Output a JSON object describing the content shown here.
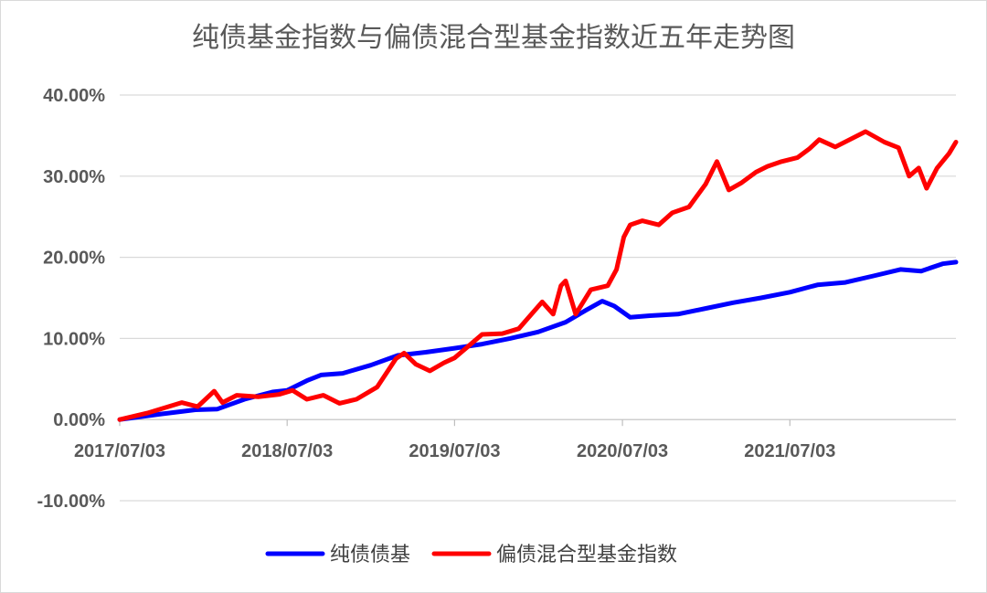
{
  "chart_data": {
    "type": "line",
    "title": "纯债基金指数与偏债混合型基金指数近五年走势图",
    "ylim": [
      -0.1,
      0.4
    ],
    "y_ticks": [
      -0.1,
      0.0,
      0.1,
      0.2,
      0.3,
      0.4
    ],
    "y_tick_labels": [
      "-10.00%",
      "0.00%",
      "10.00%",
      "20.00%",
      "30.00%",
      "40.00%"
    ],
    "x_range": [
      "2017-07-03",
      "2022-06-30"
    ],
    "x_ticks": [
      "2017-07-03",
      "2018-07-03",
      "2019-07-03",
      "2020-07-03",
      "2021-07-03"
    ],
    "x_tick_labels": [
      "2017/07/03",
      "2018/07/03",
      "2019/07/03",
      "2020/07/03",
      "2021/07/03"
    ],
    "grid": true,
    "legend_position": "bottom",
    "series": [
      {
        "name": "纯债债基",
        "color": "#0000ff",
        "points": [
          [
            "2017-07-03",
            0.0
          ],
          [
            "2017-10-03",
            0.007
          ],
          [
            "2017-12-15",
            0.012
          ],
          [
            "2018-02-01",
            0.013
          ],
          [
            "2018-04-01",
            0.025
          ],
          [
            "2018-06-01",
            0.034
          ],
          [
            "2018-07-03",
            0.036
          ],
          [
            "2018-08-15",
            0.048
          ],
          [
            "2018-09-15",
            0.055
          ],
          [
            "2018-11-01",
            0.057
          ],
          [
            "2019-01-01",
            0.067
          ],
          [
            "2019-03-01",
            0.079
          ],
          [
            "2019-05-01",
            0.083
          ],
          [
            "2019-07-03",
            0.088
          ],
          [
            "2019-09-01",
            0.093
          ],
          [
            "2019-11-01",
            0.1
          ],
          [
            "2020-01-01",
            0.108
          ],
          [
            "2020-03-01",
            0.12
          ],
          [
            "2020-04-15",
            0.135
          ],
          [
            "2020-05-20",
            0.146
          ],
          [
            "2020-06-15",
            0.14
          ],
          [
            "2020-07-20",
            0.126
          ],
          [
            "2020-09-01",
            0.128
          ],
          [
            "2020-11-01",
            0.13
          ],
          [
            "2021-01-01",
            0.137
          ],
          [
            "2021-03-01",
            0.144
          ],
          [
            "2021-05-01",
            0.15
          ],
          [
            "2021-07-03",
            0.157
          ],
          [
            "2021-09-01",
            0.166
          ],
          [
            "2021-11-01",
            0.169
          ],
          [
            "2022-01-01",
            0.177
          ],
          [
            "2022-03-01",
            0.185
          ],
          [
            "2022-04-15",
            0.183
          ],
          [
            "2022-06-01",
            0.192
          ],
          [
            "2022-06-30",
            0.194
          ]
        ]
      },
      {
        "name": "偏债混合型基金指数",
        "color": "#ff0000",
        "points": [
          [
            "2017-07-03",
            0.0
          ],
          [
            "2017-09-01",
            0.008
          ],
          [
            "2017-11-15",
            0.021
          ],
          [
            "2017-12-20",
            0.016
          ],
          [
            "2018-01-25",
            0.035
          ],
          [
            "2018-02-12",
            0.021
          ],
          [
            "2018-03-15",
            0.03
          ],
          [
            "2018-05-01",
            0.028
          ],
          [
            "2018-06-15",
            0.031
          ],
          [
            "2018-07-15",
            0.036
          ],
          [
            "2018-08-15",
            0.025
          ],
          [
            "2018-09-20",
            0.03
          ],
          [
            "2018-10-25",
            0.02
          ],
          [
            "2018-12-01",
            0.025
          ],
          [
            "2019-01-15",
            0.04
          ],
          [
            "2019-02-25",
            0.075
          ],
          [
            "2019-03-15",
            0.082
          ],
          [
            "2019-04-10",
            0.068
          ],
          [
            "2019-05-10",
            0.06
          ],
          [
            "2019-06-10",
            0.07
          ],
          [
            "2019-07-03",
            0.076
          ],
          [
            "2019-08-01",
            0.09
          ],
          [
            "2019-09-01",
            0.105
          ],
          [
            "2019-10-15",
            0.106
          ],
          [
            "2019-11-20",
            0.112
          ],
          [
            "2020-01-10",
            0.145
          ],
          [
            "2020-02-03",
            0.13
          ],
          [
            "2020-02-20",
            0.165
          ],
          [
            "2020-03-01",
            0.171
          ],
          [
            "2020-03-23",
            0.13
          ],
          [
            "2020-04-25",
            0.16
          ],
          [
            "2020-06-01",
            0.165
          ],
          [
            "2020-06-20",
            0.185
          ],
          [
            "2020-07-06",
            0.225
          ],
          [
            "2020-07-20",
            0.24
          ],
          [
            "2020-08-15",
            0.245
          ],
          [
            "2020-09-20",
            0.24
          ],
          [
            "2020-10-20",
            0.255
          ],
          [
            "2020-11-25",
            0.262
          ],
          [
            "2020-12-31",
            0.29
          ],
          [
            "2021-01-25",
            0.318
          ],
          [
            "2021-02-20",
            0.283
          ],
          [
            "2021-03-20",
            0.292
          ],
          [
            "2021-04-20",
            0.305
          ],
          [
            "2021-05-15",
            0.312
          ],
          [
            "2021-06-15",
            0.318
          ],
          [
            "2021-07-20",
            0.323
          ],
          [
            "2021-08-15",
            0.334
          ],
          [
            "2021-09-05",
            0.345
          ],
          [
            "2021-10-10",
            0.336
          ],
          [
            "2021-12-15",
            0.355
          ],
          [
            "2022-01-25",
            0.342
          ],
          [
            "2022-02-25",
            0.335
          ],
          [
            "2022-03-20",
            0.3
          ],
          [
            "2022-04-10",
            0.31
          ],
          [
            "2022-04-27",
            0.285
          ],
          [
            "2022-05-20",
            0.31
          ],
          [
            "2022-06-15",
            0.328
          ],
          [
            "2022-06-30",
            0.342
          ]
        ]
      }
    ]
  }
}
